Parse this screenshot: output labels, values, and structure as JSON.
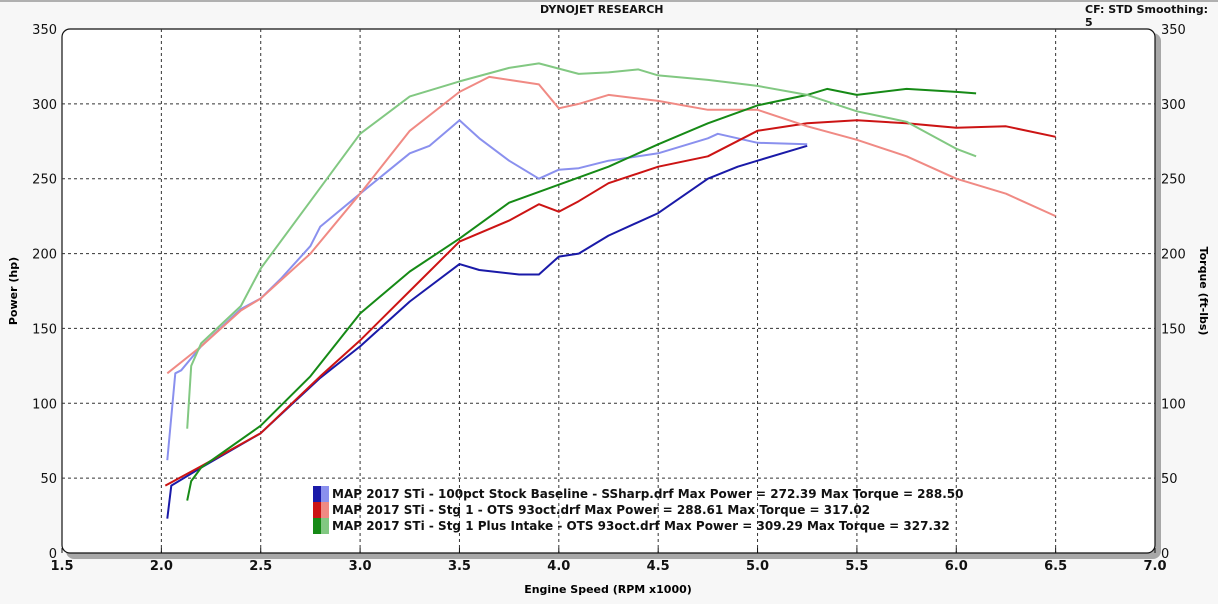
{
  "header": {
    "title": "DYNOJET RESEARCH",
    "settings": "CF: STD  Smoothing: 5"
  },
  "chart_data": {
    "type": "line",
    "title": "DYNOJET RESEARCH",
    "xlabel": "Engine Speed (RPM x1000)",
    "ylabel": "Power (hp)",
    "y2label": "Torque (ft-lbs)",
    "xlim": [
      1.5,
      7.0
    ],
    "ylim": [
      0,
      350
    ],
    "y2lim": [
      0,
      350
    ],
    "grid": true,
    "legend_position": "bottom-center",
    "xticks": [
      "1.5",
      "2.0",
      "2.5",
      "3.0",
      "3.5",
      "4.0",
      "4.5",
      "5.0",
      "5.5",
      "6.0",
      "6.5",
      "7.0"
    ],
    "yticks": [
      "0",
      "50",
      "100",
      "150",
      "200",
      "250",
      "300",
      "350"
    ],
    "legend": [
      {
        "text": "MAP 2017 STi - 100pct Stock Baseline - SSharp.drf Max Power = 272.39 Max Torque = 288.50",
        "dark": "#1a1aa8",
        "light": "#8a90ee"
      },
      {
        "text": "MAP 2017 STi - Stg 1 - OTS 93oct.drf Max Power = 288.61 Max Torque = 317.02",
        "dark": "#cc1414",
        "light": "#f08a84"
      },
      {
        "text": "MAP 2017 STi - Stg 1 Plus Intake - OTS 93oct.drf Max Power = 309.29 Max Torque = 327.32",
        "dark": "#168a16",
        "light": "#82c882"
      }
    ],
    "series": [
      {
        "name": "Stock Baseline Power",
        "color": "#1a1aa8",
        "width": 2,
        "points": [
          [
            2.03,
            23
          ],
          [
            2.05,
            45
          ],
          [
            2.2,
            57
          ],
          [
            2.5,
            80
          ],
          [
            2.8,
            117
          ],
          [
            3.0,
            138
          ],
          [
            3.25,
            168
          ],
          [
            3.5,
            193
          ],
          [
            3.6,
            189
          ],
          [
            3.8,
            186
          ],
          [
            3.9,
            186
          ],
          [
            4.0,
            198
          ],
          [
            4.1,
            200
          ],
          [
            4.25,
            212
          ],
          [
            4.5,
            227
          ],
          [
            4.75,
            250
          ],
          [
            4.9,
            258
          ],
          [
            5.0,
            262
          ],
          [
            5.25,
            272
          ]
        ]
      },
      {
        "name": "Stock Baseline Torque",
        "color": "#8a90ee",
        "width": 2,
        "points": [
          [
            2.03,
            62
          ],
          [
            2.07,
            120
          ],
          [
            2.1,
            122
          ],
          [
            2.2,
            138
          ],
          [
            2.4,
            163
          ],
          [
            2.5,
            170
          ],
          [
            2.6,
            183
          ],
          [
            2.75,
            205
          ],
          [
            2.8,
            218
          ],
          [
            3.0,
            240
          ],
          [
            3.25,
            267
          ],
          [
            3.35,
            272
          ],
          [
            3.5,
            289
          ],
          [
            3.6,
            277
          ],
          [
            3.75,
            262
          ],
          [
            3.9,
            250
          ],
          [
            4.0,
            256
          ],
          [
            4.1,
            257
          ],
          [
            4.25,
            262
          ],
          [
            4.5,
            267
          ],
          [
            4.75,
            277
          ],
          [
            4.8,
            280
          ],
          [
            5.0,
            274
          ],
          [
            5.25,
            273
          ]
        ]
      },
      {
        "name": "Stg 1 Power",
        "color": "#cc1414",
        "width": 2,
        "points": [
          [
            2.02,
            45
          ],
          [
            2.2,
            58
          ],
          [
            2.5,
            80
          ],
          [
            2.8,
            118
          ],
          [
            3.0,
            142
          ],
          [
            3.25,
            175
          ],
          [
            3.5,
            208
          ],
          [
            3.75,
            222
          ],
          [
            3.9,
            233
          ],
          [
            4.0,
            228
          ],
          [
            4.1,
            235
          ],
          [
            4.25,
            247
          ],
          [
            4.5,
            258
          ],
          [
            4.75,
            265
          ],
          [
            5.0,
            282
          ],
          [
            5.25,
            287
          ],
          [
            5.5,
            289
          ],
          [
            5.75,
            287
          ],
          [
            6.0,
            284
          ],
          [
            6.25,
            285
          ],
          [
            6.5,
            278
          ]
        ]
      },
      {
        "name": "Stg 1 Torque",
        "color": "#f08a84",
        "width": 2,
        "points": [
          [
            2.03,
            120
          ],
          [
            2.2,
            138
          ],
          [
            2.4,
            162
          ],
          [
            2.5,
            170
          ],
          [
            2.75,
            200
          ],
          [
            3.0,
            240
          ],
          [
            3.25,
            282
          ],
          [
            3.5,
            308
          ],
          [
            3.65,
            318
          ],
          [
            3.75,
            316
          ],
          [
            3.9,
            313
          ],
          [
            4.0,
            297
          ],
          [
            4.1,
            300
          ],
          [
            4.25,
            306
          ],
          [
            4.5,
            302
          ],
          [
            4.75,
            296
          ],
          [
            5.0,
            296
          ],
          [
            5.25,
            285
          ],
          [
            5.5,
            276
          ],
          [
            5.75,
            265
          ],
          [
            6.0,
            250
          ],
          [
            6.25,
            240
          ],
          [
            6.5,
            225
          ]
        ]
      },
      {
        "name": "Stg 1 Plus Intake Power",
        "color": "#168a16",
        "width": 2,
        "points": [
          [
            2.13,
            35
          ],
          [
            2.15,
            48
          ],
          [
            2.2,
            57
          ],
          [
            2.5,
            85
          ],
          [
            2.75,
            118
          ],
          [
            3.0,
            160
          ],
          [
            3.25,
            188
          ],
          [
            3.5,
            210
          ],
          [
            3.75,
            234
          ],
          [
            4.0,
            246
          ],
          [
            4.25,
            258
          ],
          [
            4.5,
            273
          ],
          [
            4.75,
            287
          ],
          [
            5.0,
            299
          ],
          [
            5.25,
            306
          ],
          [
            5.35,
            310
          ],
          [
            5.5,
            306
          ],
          [
            5.75,
            310
          ],
          [
            6.0,
            308
          ],
          [
            6.1,
            307
          ]
        ]
      },
      {
        "name": "Stg 1 Plus Intake Torque",
        "color": "#82c882",
        "width": 2,
        "points": [
          [
            2.13,
            83
          ],
          [
            2.15,
            125
          ],
          [
            2.2,
            140
          ],
          [
            2.4,
            165
          ],
          [
            2.5,
            190
          ],
          [
            2.75,
            235
          ],
          [
            3.0,
            280
          ],
          [
            3.25,
            305
          ],
          [
            3.5,
            315
          ],
          [
            3.75,
            324
          ],
          [
            3.9,
            327
          ],
          [
            4.1,
            320
          ],
          [
            4.25,
            321
          ],
          [
            4.4,
            323
          ],
          [
            4.5,
            319
          ],
          [
            4.75,
            316
          ],
          [
            5.0,
            312
          ],
          [
            5.25,
            306
          ],
          [
            5.5,
            295
          ],
          [
            5.75,
            288
          ],
          [
            6.0,
            270
          ],
          [
            6.1,
            265
          ]
        ]
      }
    ]
  }
}
